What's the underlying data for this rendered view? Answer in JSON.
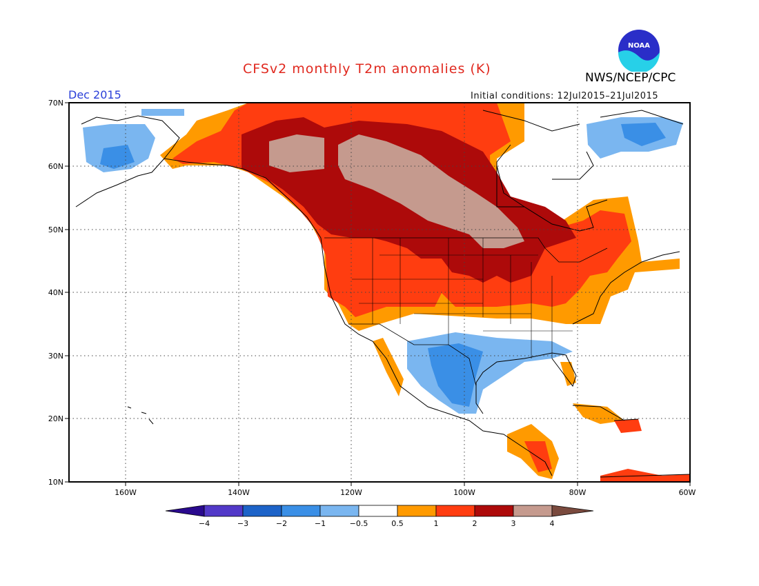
{
  "header": {
    "title": "CFSv2 monthly T2m anomalies (K)",
    "agency": "NWS/NCEP/CPC",
    "logo_text": "NOAA",
    "month": "Dec 2015",
    "initial_conditions": "Initial conditions: 12Jul2015–21Jul2015"
  },
  "map": {
    "projection": "lat-lon",
    "lon_range": [
      "170W",
      "60W"
    ],
    "lat_range": [
      "10N",
      "70N"
    ],
    "lat_labels": [
      "70N",
      "60N",
      "50N",
      "40N",
      "30N",
      "20N",
      "10N"
    ],
    "lon_labels": [
      "160W",
      "140W",
      "120W",
      "100W",
      "80W",
      "60W"
    ],
    "gridlines": "dotted",
    "regions": [
      {
        "name": "Central Canada / Hudson Bay",
        "category": "3 to 4"
      },
      {
        "name": "Western & Northern Canada",
        "category": "2 to 3"
      },
      {
        "name": "Northern Plains / Upper Midwest",
        "category": "2 to 3"
      },
      {
        "name": "Pacific Northwest / Great Basin",
        "category": "1 to 2"
      },
      {
        "name": "Northeast US / Quebec / Maritimes",
        "category": "0.5 to 2"
      },
      {
        "name": "Alaska interior / Aleutians",
        "category": "-1 to -2"
      },
      {
        "name": "Texas / Northern Mexico",
        "category": "-1 to -2"
      },
      {
        "name": "Southeast US / Gulf Coast",
        "category": "-0.5 to -1"
      },
      {
        "name": "Central America / Caribbean",
        "category": "0.5 to 2"
      }
    ]
  },
  "colorbar": {
    "labels": [
      "−4",
      "−3",
      "−2",
      "−1",
      "−0.5",
      "0.5",
      "1",
      "2",
      "3",
      "4"
    ],
    "colors": [
      "#2a0a8e",
      "#5239c8",
      "#1d63c8",
      "#3a8fe6",
      "#7ab6f0",
      "#ffffff",
      "#ff9a00",
      "#ff3d10",
      "#ad0a0a",
      "#c59a8e",
      "#7a4a3e"
    ]
  }
}
